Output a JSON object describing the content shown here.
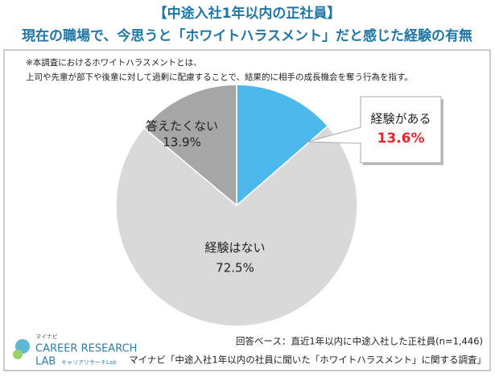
{
  "chart_data": {
    "type": "pie",
    "title": "【中途入社1年以内の正社員】",
    "subtitle": "現在の職場で、今思うと「ホワイトハラスメント」だと感じた経験の有無",
    "notes": [
      "※本調査におけるホワイトハラスメントとは、",
      "上司や先輩が部下や後輩に対して過剰に配慮することで、結果的に相手の成長機会を奪う行為を指す。"
    ],
    "categories": [
      "経験がある",
      "経験はない",
      "答えたくない"
    ],
    "values": [
      13.6,
      72.5,
      13.9
    ],
    "value_labels": [
      "13.6%",
      "72.5%",
      "13.9%"
    ],
    "colors": [
      "#4db8ec",
      "#d9d9d9",
      "#a6a6a6"
    ],
    "base": "回答ベース：直近1年以内に中途入社した正社員(n=1,446)",
    "source": "マイナビ「中途入社1年以内の社員に聞いた「ホワイトハラスメント」に関する調査」"
  },
  "logo": {
    "brand": "マイナビ",
    "line1": "CAREER RESEARCH",
    "line2": "LAB",
    "sub": "キャリアリサーチLab"
  }
}
